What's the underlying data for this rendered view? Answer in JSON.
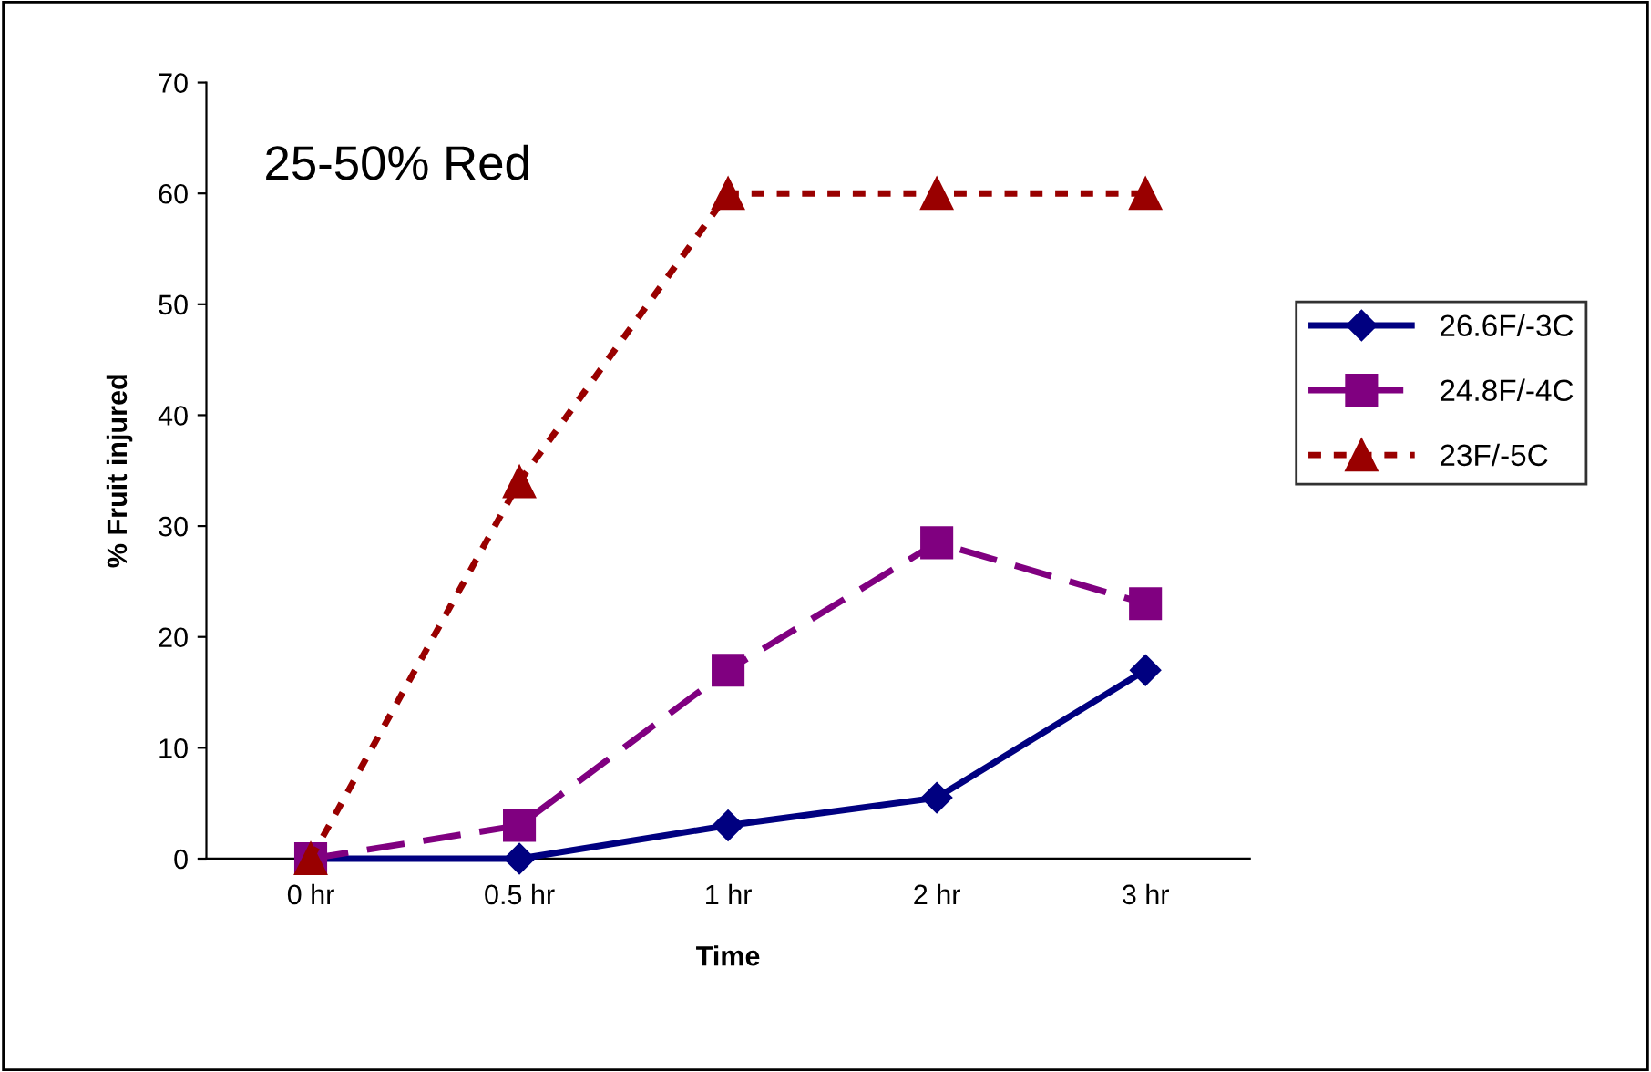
{
  "chart_data": {
    "type": "line",
    "xlabel": "Time",
    "ylabel": "% Fruit injured",
    "categories": [
      "0 hr",
      "0.5 hr",
      "1 hr",
      "2 hr",
      "3 hr"
    ],
    "series": [
      {
        "name": "26.6F/-3C",
        "color": "#000080",
        "marker": "diamond",
        "line_style": "solid",
        "values": [
          0,
          0,
          3,
          5.5,
          17
        ]
      },
      {
        "name": "24.8F/-4C",
        "color": "#800080",
        "marker": "square",
        "line_style": "dashed",
        "values": [
          0,
          3,
          17,
          28.5,
          23
        ]
      },
      {
        "name": "23F/-5C",
        "color": "#990000",
        "marker": "triangle",
        "line_style": "dotted",
        "values": [
          0,
          34,
          60,
          60,
          60
        ]
      }
    ],
    "annotations": [
      "25-50% Red"
    ],
    "ylim": [
      0,
      70
    ],
    "yticks": [
      0,
      10,
      20,
      30,
      40,
      50,
      60,
      70
    ],
    "grid": false,
    "legend": "right"
  }
}
